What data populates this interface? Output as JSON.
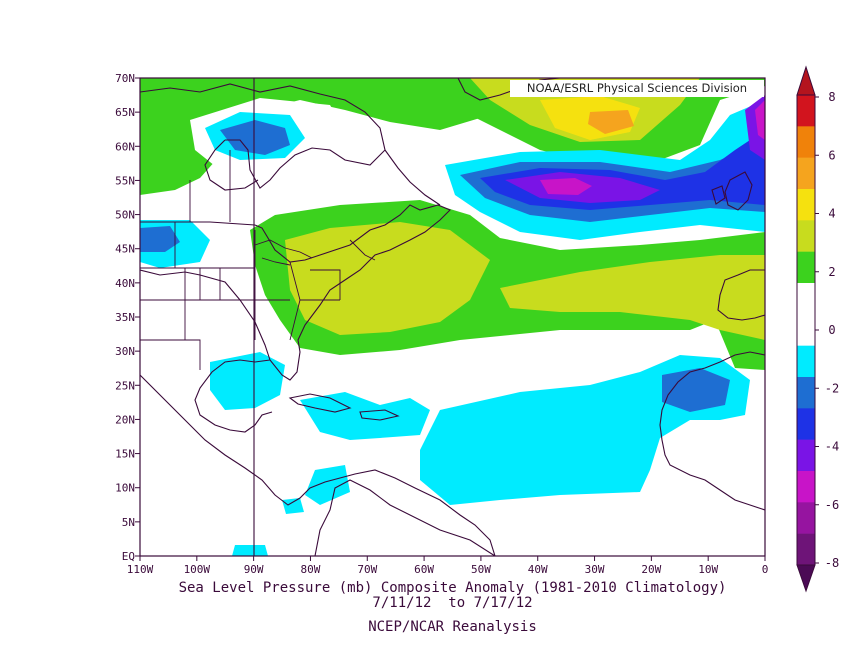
{
  "credit": "NOAA/ESRL Physical Sciences Division",
  "captions": {
    "line1": "Sea Level Pressure (mb) Composite Anomaly (1981-2010 Climatology)",
    "line2": "7/11/12  to 7/17/12",
    "line3": "NCEP/NCAR Reanalysis"
  },
  "map": {
    "lat_labels": [
      "70N",
      "65N",
      "60N",
      "55N",
      "50N",
      "45N",
      "40N",
      "35N",
      "30N",
      "25N",
      "20N",
      "15N",
      "10N",
      "5N",
      "EQ"
    ],
    "lon_labels": [
      "110W",
      "100W",
      "90W",
      "80W",
      "70W",
      "60W",
      "50W",
      "40W",
      "30W",
      "20W",
      "10W",
      "0"
    ],
    "lat_range": [
      0,
      70
    ],
    "lon_range": [
      -110,
      0
    ]
  },
  "colorbar": {
    "labels": [
      "8",
      "6",
      "4",
      "2",
      "0",
      "-2",
      "-4",
      "-6",
      "-8"
    ],
    "bins": [
      {
        "range": "6 to 8",
        "color": "#d2141e"
      },
      {
        "range": "5 to 6",
        "color": "#f0820a"
      },
      {
        "range": "4 to 5",
        "color": "#f5a41e"
      },
      {
        "range": "3 to 4",
        "color": "#f5e10f"
      },
      {
        "range": "2 to 3",
        "color": "#c8dc1e"
      },
      {
        "range": "1 to 2",
        "color": "#3cd21e"
      },
      {
        "range": "0 to 1",
        "color": "#ffffff"
      },
      {
        "range": "-1 to 0",
        "color": "#ffffff"
      },
      {
        "range": "-2 to -1",
        "color": "#00ebff"
      },
      {
        "range": "-3 to -2",
        "color": "#1e6ed2"
      },
      {
        "range": "-4 to -3",
        "color": "#1e32e6"
      },
      {
        "range": "-5 to -4",
        "color": "#7a14e6"
      },
      {
        "range": "-6 to -5",
        "color": "#c814c8"
      },
      {
        "range": "-7 to -6",
        "color": "#9614a0"
      },
      {
        "range": "-8 to -7",
        "color": "#6e1478"
      }
    ],
    "over_color": "#b4141e",
    "under_color": "#4b0a55"
  }
}
